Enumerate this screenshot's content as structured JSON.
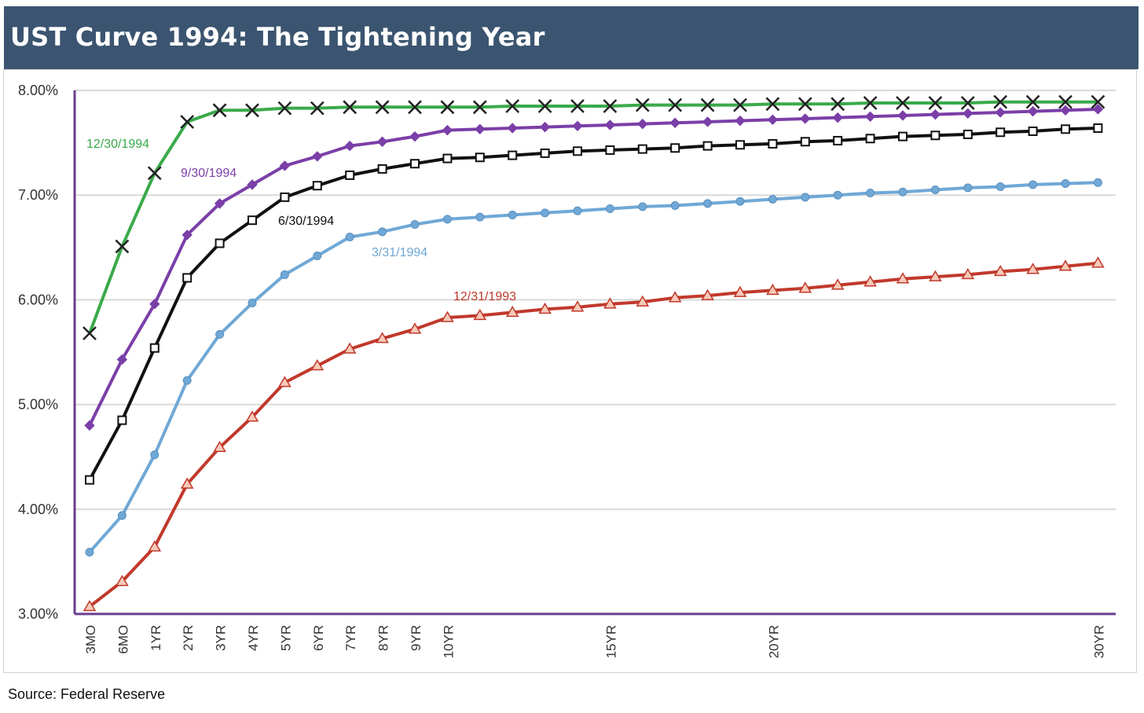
{
  "header": {
    "title": "UST Curve 1994: The Tightening Year"
  },
  "source": "Source: Federal Reserve",
  "colors": {
    "header_bg": "#3b5470",
    "axis": "#6a3d8f",
    "grid": "#d9d9d9",
    "s1993": "#c0392b",
    "s0331": "#6fa8d6",
    "s0630": "#111111",
    "s0930": "#7b3fa8",
    "s1230": "#3aaa4a"
  },
  "chart_data": {
    "type": "line",
    "title": "UST Curve 1994: The Tightening Year",
    "xlabel": "",
    "ylabel": "",
    "ylim": [
      3.0,
      8.0
    ],
    "yticks": [
      "3.00%",
      "4.00%",
      "5.00%",
      "6.00%",
      "7.00%",
      "8.00%"
    ],
    "ytick_values": [
      3,
      4,
      5,
      6,
      7,
      8
    ],
    "x": [
      0.25,
      0.5,
      1,
      2,
      3,
      4,
      5,
      6,
      7,
      8,
      9,
      10,
      11,
      12,
      13,
      14,
      15,
      16,
      17,
      18,
      19,
      20,
      21,
      22,
      23,
      24,
      25,
      26,
      27,
      28,
      29,
      30
    ],
    "x_tick_labels": [
      "3MO",
      "6MO",
      "1YR",
      "2YR",
      "3YR",
      "4YR",
      "5YR",
      "6YR",
      "7YR",
      "8YR",
      "9YR",
      "10YR",
      "",
      "",
      "",
      "",
      "15YR",
      "",
      "",
      "",
      "",
      "20YR",
      "",
      "",
      "",
      "",
      "",
      "",
      "",
      "",
      "",
      "30YR"
    ],
    "series": [
      {
        "name": "12/31/1993",
        "marker": "triangle",
        "values": [
          3.07,
          3.31,
          3.64,
          4.24,
          4.59,
          4.88,
          5.21,
          5.37,
          5.53,
          5.63,
          5.72,
          5.83,
          5.85,
          5.88,
          5.91,
          5.93,
          5.96,
          5.98,
          6.02,
          6.04,
          6.07,
          6.09,
          6.11,
          6.14,
          6.17,
          6.2,
          6.22,
          6.24,
          6.27,
          6.29,
          6.32,
          6.35
        ]
      },
      {
        "name": "3/31/1994",
        "marker": "circle",
        "values": [
          3.59,
          3.94,
          4.52,
          5.23,
          5.67,
          5.97,
          6.24,
          6.42,
          6.6,
          6.65,
          6.72,
          6.77,
          6.79,
          6.81,
          6.83,
          6.85,
          6.87,
          6.89,
          6.9,
          6.92,
          6.94,
          6.96,
          6.98,
          7.0,
          7.02,
          7.03,
          7.05,
          7.07,
          7.08,
          7.1,
          7.11,
          7.12
        ]
      },
      {
        "name": "6/30/1994",
        "marker": "square",
        "values": [
          4.28,
          4.85,
          5.54,
          6.21,
          6.54,
          6.76,
          6.98,
          7.09,
          7.19,
          7.25,
          7.3,
          7.35,
          7.36,
          7.38,
          7.4,
          7.42,
          7.43,
          7.44,
          7.45,
          7.47,
          7.48,
          7.49,
          7.51,
          7.52,
          7.54,
          7.56,
          7.57,
          7.58,
          7.6,
          7.61,
          7.63,
          7.64
        ]
      },
      {
        "name": "9/30/1994",
        "marker": "diamond",
        "values": [
          4.8,
          5.43,
          5.96,
          6.62,
          6.92,
          7.1,
          7.28,
          7.37,
          7.47,
          7.51,
          7.56,
          7.62,
          7.63,
          7.64,
          7.65,
          7.66,
          7.67,
          7.68,
          7.69,
          7.7,
          7.71,
          7.72,
          7.73,
          7.74,
          7.75,
          7.76,
          7.77,
          7.78,
          7.79,
          7.8,
          7.81,
          7.82
        ]
      },
      {
        "name": "12/30/1994",
        "marker": "x",
        "values": [
          5.68,
          6.51,
          7.21,
          7.7,
          7.81,
          7.81,
          7.83,
          7.83,
          7.84,
          7.84,
          7.84,
          7.84,
          7.84,
          7.85,
          7.85,
          7.85,
          7.85,
          7.86,
          7.86,
          7.86,
          7.86,
          7.87,
          7.87,
          7.87,
          7.88,
          7.88,
          7.88,
          7.88,
          7.89,
          7.89,
          7.89,
          7.89
        ]
      }
    ]
  }
}
